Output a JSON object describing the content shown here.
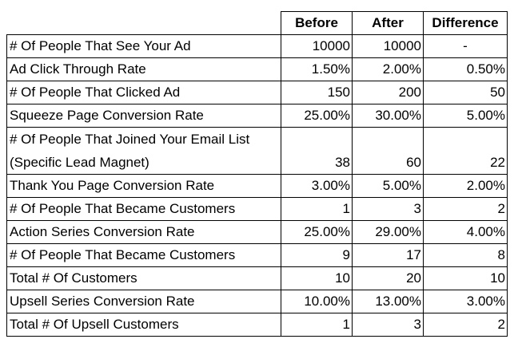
{
  "headers": {
    "before": "Before",
    "after": "After",
    "difference": "Difference"
  },
  "rows": [
    {
      "label": "# Of People That See Your Ad",
      "before": "10000",
      "after": "10000",
      "difference": "-"
    },
    {
      "label": "Ad Click Through Rate",
      "before": "1.50%",
      "after": "2.00%",
      "difference": "0.50%"
    },
    {
      "label": "# Of People That Clicked Ad",
      "before": "150",
      "after": "200",
      "difference": "50"
    },
    {
      "label": "Squeeze Page Conversion Rate",
      "before": "25.00%",
      "after": "30.00%",
      "difference": "5.00%"
    },
    {
      "label_line1": "# Of People That Joined Your Email List",
      "label_line2": "(Specific Lead Magnet)",
      "before": "38",
      "after": "60",
      "difference": "22"
    },
    {
      "label": "Thank You Page Conversion Rate",
      "before": "3.00%",
      "after": "5.00%",
      "difference": "2.00%"
    },
    {
      "label": "# Of People That Became Customers",
      "before": "1",
      "after": "3",
      "difference": "2"
    },
    {
      "label": "Action Series Conversion Rate",
      "before": "25.00%",
      "after": "29.00%",
      "difference": "4.00%"
    },
    {
      "label": "# Of People That Became Customers",
      "before": "9",
      "after": "17",
      "difference": "8"
    },
    {
      "label": "Total # Of Customers",
      "before": "10",
      "after": "20",
      "difference": "10"
    },
    {
      "label": "Upsell Series Conversion Rate",
      "before": "10.00%",
      "after": "13.00%",
      "difference": "3.00%"
    },
    {
      "label": "Total # Of Upsell Customers",
      "before": "1",
      "after": "3",
      "difference": "2"
    }
  ]
}
